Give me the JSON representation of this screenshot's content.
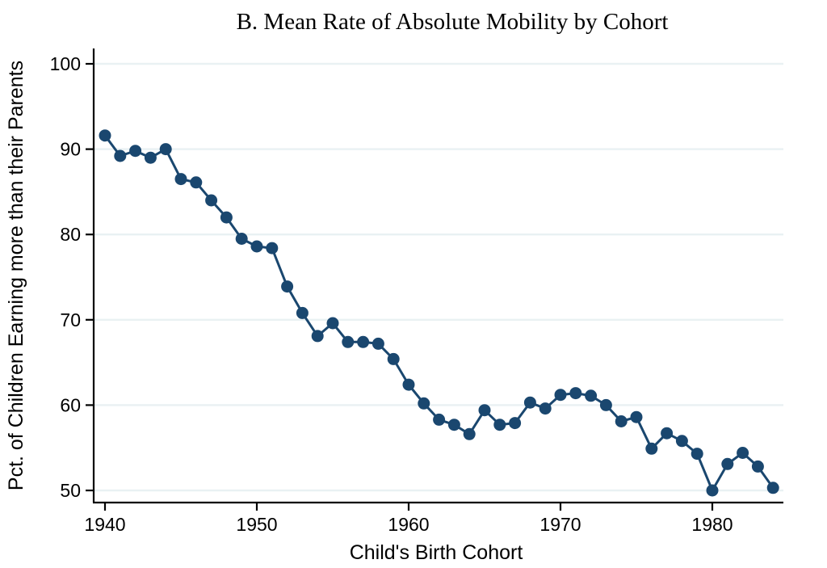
{
  "title": "B. Mean Rate of Absolute Mobility by Cohort",
  "chart_data": {
    "type": "line",
    "title": "B. Mean Rate of Absolute Mobility by Cohort",
    "xlabel": "Child's Birth Cohort",
    "ylabel": "Pct. of Children Earning more than their Parents",
    "x": [
      1940,
      1941,
      1942,
      1943,
      1944,
      1945,
      1946,
      1947,
      1948,
      1949,
      1950,
      1951,
      1952,
      1953,
      1954,
      1955,
      1956,
      1957,
      1958,
      1959,
      1960,
      1961,
      1962,
      1963,
      1964,
      1965,
      1966,
      1967,
      1968,
      1969,
      1970,
      1971,
      1972,
      1973,
      1974,
      1975,
      1976,
      1977,
      1978,
      1979,
      1980,
      1981,
      1982,
      1983,
      1984
    ],
    "series": [
      {
        "name": "Mean rate of absolute mobility",
        "values": [
          91.6,
          89.2,
          89.8,
          89.0,
          90.0,
          86.5,
          86.1,
          84.0,
          82.0,
          79.5,
          78.6,
          78.4,
          73.9,
          70.8,
          68.1,
          69.6,
          67.4,
          67.4,
          67.2,
          65.4,
          62.4,
          60.2,
          58.3,
          57.7,
          56.6,
          59.4,
          57.7,
          57.9,
          60.3,
          59.6,
          61.2,
          61.4,
          61.1,
          60.0,
          58.1,
          58.6,
          54.9,
          56.7,
          55.8,
          54.3,
          50.0,
          53.1,
          54.4,
          52.8,
          50.3
        ]
      }
    ],
    "xticks": [
      1940,
      1950,
      1960,
      1970,
      1980
    ],
    "yticks": [
      50,
      60,
      70,
      80,
      90,
      100
    ],
    "xlim": [
      1939.3,
      1984.7
    ],
    "ylim": [
      48.6,
      101.8
    ],
    "grid": "horizontal",
    "legend": "none",
    "line_color": "#1a476f",
    "marker_color": "#1a476f",
    "grid_color": "#e9f1f3",
    "axis_color": "#000000",
    "marker": "circle"
  }
}
